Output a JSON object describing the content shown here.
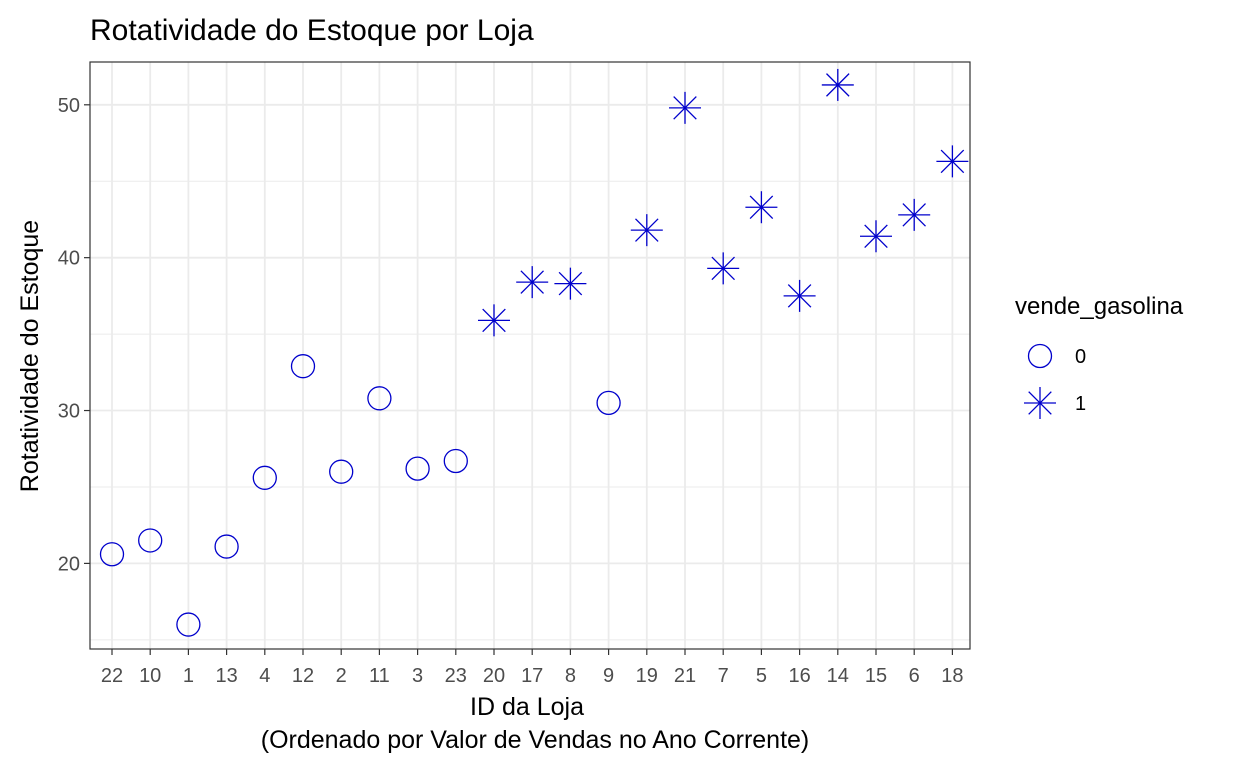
{
  "chart_data": {
    "type": "scatter",
    "title": "Rotatividade do Estoque por Loja",
    "xlabel": "ID da Loja",
    "xlabel_line2": "(Ordenado por Valor de Vendas no Ano Corrente)",
    "ylabel": "Rotatividade do Estoque",
    "categories": [
      "22",
      "10",
      "1",
      "13",
      "4",
      "12",
      "2",
      "11",
      "3",
      "23",
      "20",
      "17",
      "8",
      "9",
      "19",
      "21",
      "7",
      "5",
      "16",
      "14",
      "15",
      "6",
      "18"
    ],
    "values": [
      20.6,
      21.5,
      16.0,
      21.1,
      25.6,
      32.9,
      26.0,
      30.8,
      26.2,
      26.7,
      35.9,
      38.4,
      38.3,
      30.5,
      41.8,
      49.8,
      39.3,
      43.3,
      37.5,
      51.3,
      41.4,
      42.8,
      46.3
    ],
    "group": [
      0,
      0,
      0,
      0,
      0,
      0,
      0,
      0,
      0,
      0,
      1,
      1,
      1,
      0,
      1,
      1,
      1,
      1,
      1,
      1,
      1,
      1,
      1
    ],
    "ylim": [
      14.4,
      52.8
    ],
    "y_ticks": [
      20,
      30,
      40,
      50
    ],
    "grid": true,
    "legend": {
      "title": "vende_gasolina",
      "placement": "right",
      "entries": [
        {
          "label": "0",
          "shape": "circle"
        },
        {
          "label": "1",
          "shape": "asterisk"
        }
      ]
    },
    "point_color": "#0000cc",
    "grid_color": "#ebebeb",
    "axis_text_color": "#4d4d4d"
  }
}
